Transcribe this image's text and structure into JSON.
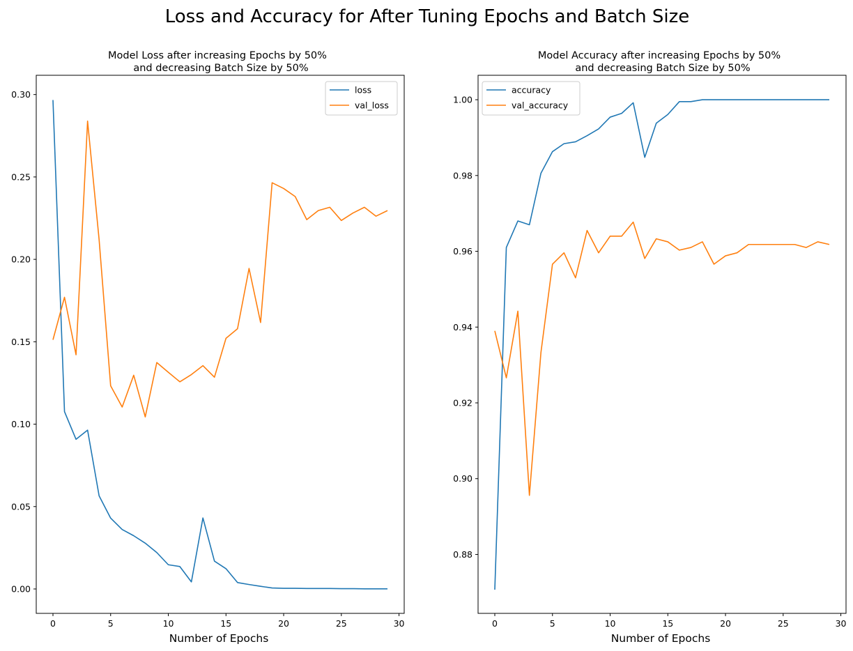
{
  "suptitle": "Loss and Accuracy for After Tuning Epochs and Batch Size",
  "colors": {
    "series_a": "#1f77b4",
    "series_b": "#ff7f0e",
    "axes": "#000000",
    "legend_border": "#cccccc"
  },
  "chart_data": [
    {
      "type": "line",
      "title_lines": [
        "Model Loss after increasing Epochs by 50%",
        "and decreasing Batch Size by 50%"
      ],
      "xlabel": "Number of Epochs",
      "ylabel": "",
      "xlim": [
        -1.45,
        30.45
      ],
      "ylim": [
        -0.0148,
        0.3117
      ],
      "xticks": [
        0,
        5,
        10,
        15,
        20,
        25,
        30
      ],
      "yticks": [
        0.0,
        0.05,
        0.1,
        0.15,
        0.2,
        0.25,
        0.3
      ],
      "ytick_labels": [
        "0.00",
        "0.05",
        "0.10",
        "0.15",
        "0.20",
        "0.25",
        "0.30"
      ],
      "grid": false,
      "legend": "top-right",
      "x": [
        0,
        1,
        2,
        3,
        4,
        5,
        6,
        7,
        8,
        9,
        10,
        11,
        12,
        13,
        14,
        15,
        16,
        17,
        18,
        19,
        20,
        21,
        22,
        23,
        24,
        25,
        26,
        27,
        28,
        29
      ],
      "series": [
        {
          "name": "loss",
          "color": "#1f77b4",
          "values": [
            0.2967,
            0.1076,
            0.0908,
            0.0964,
            0.0565,
            0.043,
            0.0361,
            0.0323,
            0.0278,
            0.0221,
            0.0147,
            0.0136,
            0.0043,
            0.0431,
            0.0169,
            0.0123,
            0.0039,
            0.0027,
            0.0016,
            0.0006,
            0.0004,
            0.0004,
            0.0003,
            0.0003,
            0.0003,
            0.0002,
            0.0002,
            0.0001,
            0.0001,
            0.0001
          ]
        },
        {
          "name": "val_loss",
          "color": "#ff7f0e",
          "values": [
            0.1512,
            0.177,
            0.1421,
            0.2839,
            0.212,
            0.1233,
            0.1104,
            0.1297,
            0.1044,
            0.1374,
            0.1315,
            0.1257,
            0.1301,
            0.1355,
            0.1285,
            0.1521,
            0.1579,
            0.1945,
            0.1617,
            0.2465,
            0.243,
            0.2381,
            0.2241,
            0.2296,
            0.2316,
            0.2236,
            0.2281,
            0.2316,
            0.2262,
            0.2296
          ]
        }
      ]
    },
    {
      "type": "line",
      "title_lines": [
        "Model Accuracy after increasing Epochs by 50%",
        "and decreasing Batch Size by 50%"
      ],
      "xlabel": "Number of Epochs",
      "ylabel": "",
      "xlim": [
        -1.45,
        30.45
      ],
      "ylim": [
        0.86445,
        1.00645
      ],
      "xticks": [
        0,
        5,
        10,
        15,
        20,
        25,
        30
      ],
      "yticks": [
        0.88,
        0.9,
        0.92,
        0.94,
        0.96,
        0.98,
        1.0
      ],
      "ytick_labels": [
        "0.88",
        "0.90",
        "0.92",
        "0.94",
        "0.96",
        "0.98",
        "1.00"
      ],
      "grid": false,
      "legend": "top-left",
      "x": [
        0,
        1,
        2,
        3,
        4,
        5,
        6,
        7,
        8,
        9,
        10,
        11,
        12,
        13,
        14,
        15,
        16,
        17,
        18,
        19,
        20,
        21,
        22,
        23,
        24,
        25,
        26,
        27,
        28,
        29
      ],
      "series": [
        {
          "name": "accuracy",
          "color": "#1f77b4",
          "values": [
            0.8707,
            0.961,
            0.968,
            0.967,
            0.9806,
            0.9863,
            0.9884,
            0.9889,
            0.9905,
            0.9923,
            0.9954,
            0.9964,
            0.9992,
            0.9848,
            0.9938,
            0.9961,
            0.9995,
            0.9995,
            1.0,
            1.0,
            1.0,
            1.0,
            1.0,
            1.0,
            1.0,
            1.0,
            1.0,
            1.0,
            1.0,
            1.0
          ]
        },
        {
          "name": "val_accuracy",
          "color": "#ff7f0e",
          "values": [
            0.939,
            0.9266,
            0.9442,
            0.8956,
            0.9333,
            0.9566,
            0.9596,
            0.953,
            0.9655,
            0.9596,
            0.964,
            0.964,
            0.9677,
            0.9581,
            0.9633,
            0.9625,
            0.9603,
            0.961,
            0.9625,
            0.9566,
            0.9588,
            0.9596,
            0.9618,
            0.9618,
            0.9618,
            0.9618,
            0.9618,
            0.961,
            0.9625,
            0.9618
          ]
        }
      ]
    }
  ]
}
